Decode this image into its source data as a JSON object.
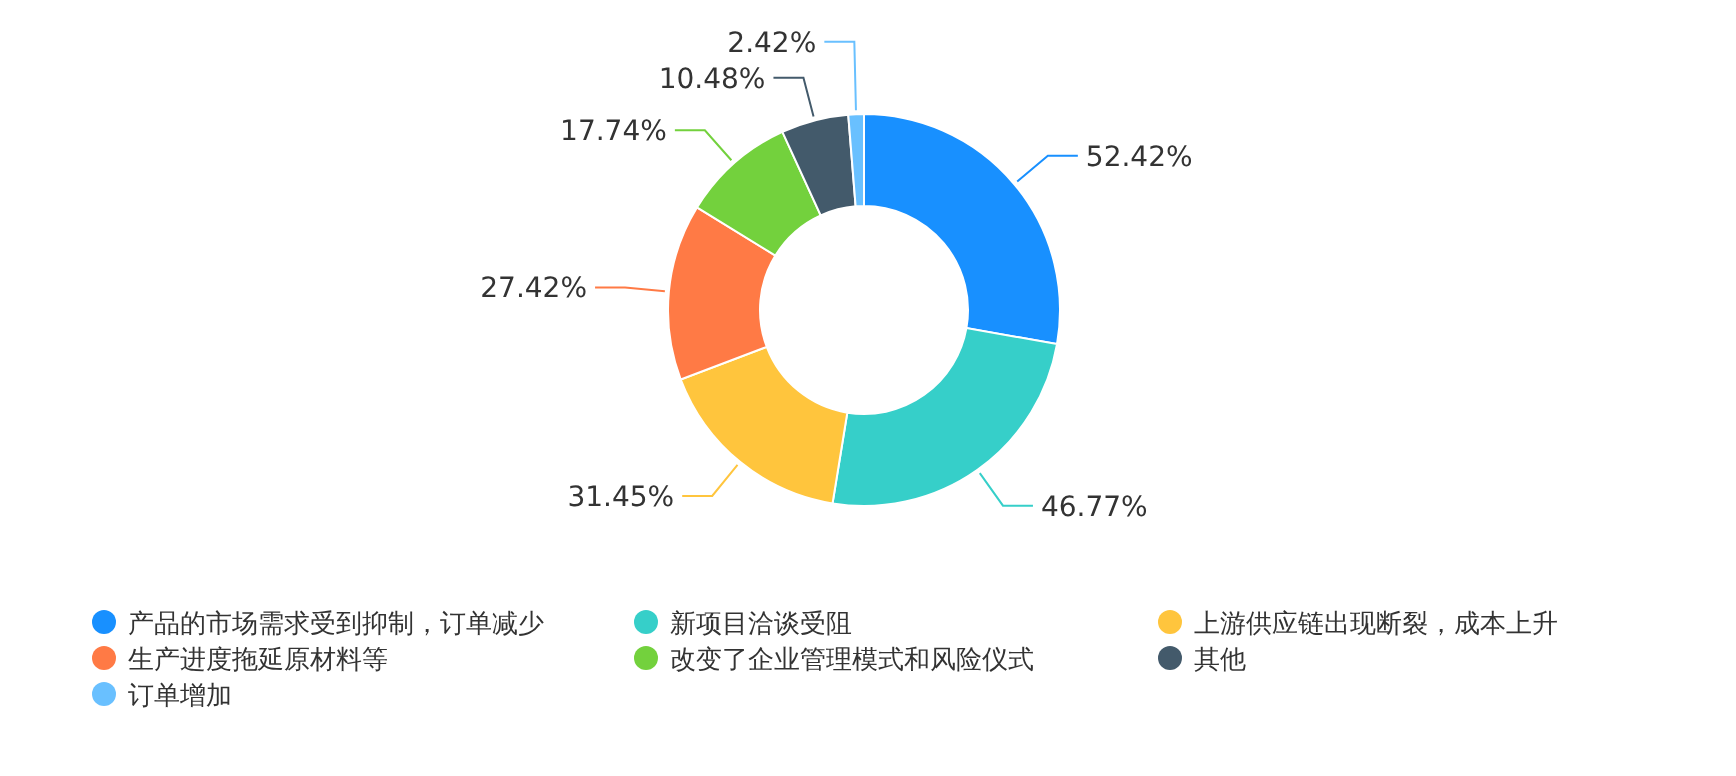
{
  "chart_data": {
    "type": "donut",
    "categories": [
      "产品的市场需求受到抑制，订单减少",
      "新项目洽谈受阻",
      "上游供应链出现断裂，成本上升",
      "生产进度拖延原材料等",
      "改变了企业管理模式和风险仪式",
      "其他",
      "订单增加"
    ],
    "values": [
      52.42,
      46.77,
      31.45,
      27.42,
      17.74,
      10.48,
      2.42
    ],
    "value_labels": [
      "52.42%",
      "46.77%",
      "31.45%",
      "27.42%",
      "17.74%",
      "10.48%",
      "2.42%"
    ],
    "colors": [
      "#1890ff",
      "#36cfc9",
      "#ffc53d",
      "#ff7a45",
      "#73d13d",
      "#435a6b",
      "#69c0ff"
    ],
    "legend": "bottom"
  }
}
